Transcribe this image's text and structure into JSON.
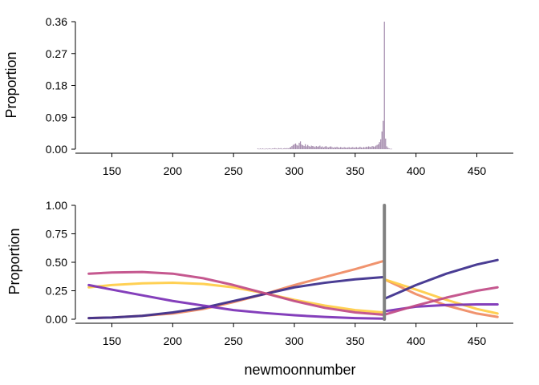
{
  "chart_data": [
    {
      "type": "bar",
      "ylabel": "Proportion",
      "xlabel": "",
      "xlim": [
        120,
        480
      ],
      "ylim": [
        0,
        0.36
      ],
      "x_ticks": [
        "150",
        "200",
        "250",
        "300",
        "350",
        "400",
        "450"
      ],
      "y_ticks": [
        "0.00",
        "0.09",
        "0.18",
        "0.27",
        "0.36"
      ],
      "bar_color": "#a58cae",
      "x": [
        270,
        271,
        272,
        273,
        274,
        275,
        276,
        277,
        278,
        279,
        280,
        281,
        282,
        283,
        284,
        285,
        286,
        287,
        288,
        289,
        290,
        291,
        292,
        293,
        294,
        295,
        296,
        297,
        298,
        299,
        300,
        301,
        302,
        303,
        304,
        305,
        306,
        307,
        308,
        309,
        310,
        311,
        312,
        313,
        314,
        315,
        316,
        317,
        318,
        319,
        320,
        321,
        322,
        323,
        324,
        325,
        326,
        327,
        328,
        329,
        330,
        331,
        332,
        333,
        334,
        335,
        336,
        337,
        338,
        339,
        340,
        341,
        342,
        343,
        344,
        345,
        346,
        347,
        348,
        349,
        350,
        351,
        352,
        353,
        354,
        355,
        356,
        357,
        358,
        359,
        360,
        361,
        362,
        363,
        364,
        365,
        366,
        367,
        368,
        369,
        370,
        371,
        372,
        373,
        374,
        375,
        376,
        377,
        378,
        379,
        380
      ],
      "values": [
        0.002,
        0.001,
        0.002,
        0.001,
        0.002,
        0.001,
        0.001,
        0.002,
        0.001,
        0.002,
        0.002,
        0.001,
        0.002,
        0.002,
        0.003,
        0.002,
        0.001,
        0.003,
        0.002,
        0.003,
        0.001,
        0.002,
        0.003,
        0.002,
        0.003,
        0.002,
        0.004,
        0.006,
        0.009,
        0.012,
        0.014,
        0.016,
        0.012,
        0.01,
        0.018,
        0.022,
        0.013,
        0.011,
        0.009,
        0.014,
        0.008,
        0.012,
        0.009,
        0.007,
        0.01,
        0.009,
        0.008,
        0.006,
        0.009,
        0.007,
        0.008,
        0.01,
        0.006,
        0.008,
        0.005,
        0.007,
        0.009,
        0.006,
        0.005,
        0.007,
        0.008,
        0.006,
        0.004,
        0.006,
        0.005,
        0.007,
        0.005,
        0.004,
        0.006,
        0.005,
        0.004,
        0.006,
        0.005,
        0.004,
        0.005,
        0.006,
        0.004,
        0.005,
        0.006,
        0.004,
        0.005,
        0.006,
        0.004,
        0.005,
        0.007,
        0.005,
        0.004,
        0.006,
        0.005,
        0.007,
        0.006,
        0.008,
        0.007,
        0.006,
        0.009,
        0.008,
        0.007,
        0.01,
        0.012,
        0.014,
        0.02,
        0.028,
        0.05,
        0.08,
        0.36,
        0.03,
        0.008,
        0.004,
        0.002,
        0.001,
        0.001
      ]
    },
    {
      "type": "line",
      "ylabel": "Proportion",
      "xlabel": "newmoonnumber",
      "xlim": [
        120,
        480
      ],
      "ylim": [
        0,
        1
      ],
      "x_ticks": [
        "150",
        "200",
        "250",
        "300",
        "350",
        "400",
        "450"
      ],
      "y_ticks": [
        "0.00",
        "0.25",
        "0.50",
        "0.75",
        "1.00"
      ],
      "changepoint": {
        "x": 374,
        "ymin": 0.0,
        "ymax": 1.0,
        "color": "#808080"
      },
      "series": [
        {
          "color": "#ef8a62",
          "segments": [
            {
              "x": [
                131,
                150,
                175,
                200,
                225,
                250,
                275,
                300,
                325,
                350,
                373
              ],
              "y": [
                0.01,
                0.015,
                0.03,
                0.05,
                0.09,
                0.15,
                0.22,
                0.3,
                0.37,
                0.44,
                0.51
              ]
            },
            {
              "x": [
                374,
                400,
                425,
                450,
                467
              ],
              "y": [
                0.35,
                0.22,
                0.12,
                0.05,
                0.02
              ]
            }
          ]
        },
        {
          "color": "#ffcc44",
          "segments": [
            {
              "x": [
                131,
                150,
                175,
                200,
                225,
                250,
                275,
                300,
                325,
                350,
                373
              ],
              "y": [
                0.28,
                0.3,
                0.315,
                0.32,
                0.31,
                0.28,
                0.23,
                0.17,
                0.12,
                0.08,
                0.06
              ]
            },
            {
              "x": [
                374,
                400,
                425,
                450,
                467
              ],
              "y": [
                0.35,
                0.26,
                0.17,
                0.09,
                0.05
              ]
            }
          ]
        },
        {
          "color": "#3b2d8b",
          "segments": [
            {
              "x": [
                131,
                150,
                175,
                200,
                225,
                250,
                275,
                300,
                325,
                350,
                373
              ],
              "y": [
                0.01,
                0.015,
                0.03,
                0.06,
                0.1,
                0.16,
                0.22,
                0.28,
                0.32,
                0.35,
                0.37
              ]
            },
            {
              "x": [
                374,
                400,
                425,
                450,
                467
              ],
              "y": [
                0.18,
                0.3,
                0.4,
                0.48,
                0.52
              ]
            }
          ]
        },
        {
          "color": "#7a2fb5",
          "segments": [
            {
              "x": [
                131,
                150,
                175,
                200,
                225,
                250,
                275,
                300,
                325,
                350,
                373
              ],
              "y": [
                0.3,
                0.26,
                0.21,
                0.16,
                0.12,
                0.08,
                0.055,
                0.035,
                0.02,
                0.01,
                0.005
              ]
            },
            {
              "x": [
                374,
                400,
                425,
                450,
                467
              ],
              "y": [
                0.07,
                0.11,
                0.125,
                0.13,
                0.13
              ]
            }
          ]
        },
        {
          "color": "#c04a86",
          "segments": [
            {
              "x": [
                131,
                150,
                175,
                200,
                225,
                250,
                275,
                300,
                325,
                350,
                373
              ],
              "y": [
                0.4,
                0.41,
                0.415,
                0.4,
                0.36,
                0.3,
                0.23,
                0.16,
                0.1,
                0.06,
                0.04
              ]
            },
            {
              "x": [
                374,
                400,
                425,
                450,
                467
              ],
              "y": [
                0.04,
                0.12,
                0.19,
                0.25,
                0.28
              ]
            }
          ]
        }
      ]
    }
  ]
}
